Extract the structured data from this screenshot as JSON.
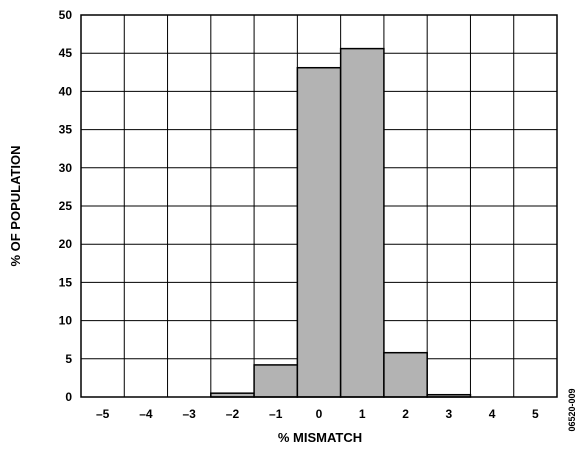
{
  "chart_data": {
    "type": "bar",
    "categories": [
      "-2",
      "-1",
      "0",
      "1",
      "2",
      "3"
    ],
    "values": [
      0.5,
      4.2,
      43.1,
      45.6,
      5.8,
      0.3
    ],
    "x_ticks": [
      "–5",
      "–4",
      "–3",
      "–2",
      "–1",
      "0",
      "1",
      "2",
      "3",
      "4",
      "5"
    ],
    "y_ticks": [
      "0",
      "5",
      "10",
      "15",
      "20",
      "25",
      "30",
      "35",
      "40",
      "45",
      "50"
    ],
    "xlim": [
      -5.5,
      5.5
    ],
    "ylim": [
      0,
      50
    ],
    "xlabel": "% MISMATCH",
    "ylabel": "% OF POPULATION",
    "grid": true,
    "figure_id": "06520-009",
    "colors": {
      "bar_fill": "#b3b3b3",
      "bar_stroke": "#000000",
      "grid": "#000000"
    }
  }
}
